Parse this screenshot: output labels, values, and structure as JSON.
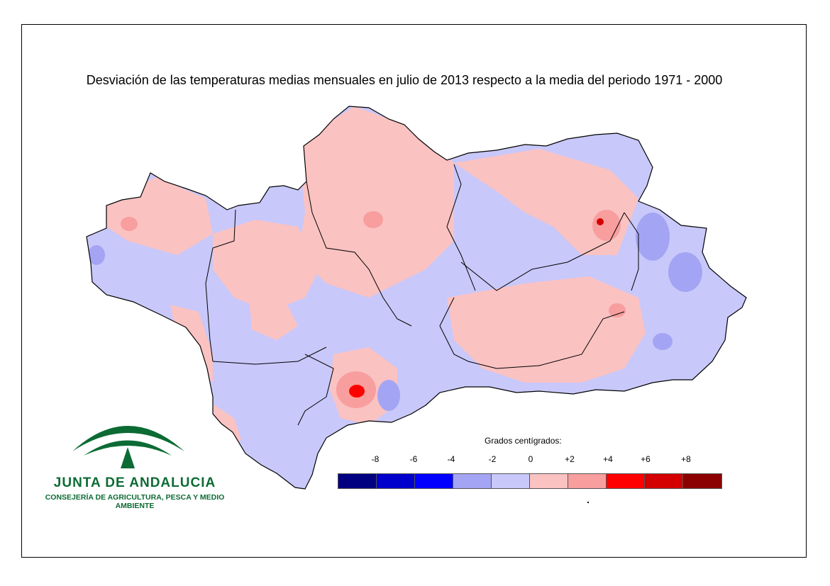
{
  "title": "Desviación de las temperaturas medias mensuales en julio de 2013 respecto a la media del periodo 1971 - 2000",
  "logo": {
    "name": "JUNTA DE ANDALUCIA",
    "subtitle": "CONSEJERÍA DE AGRICULTURA, PESCA Y MEDIO AMBIENTE",
    "color": "#0c6b34"
  },
  "legend": {
    "title": "Grados centígrados:",
    "ticks": [
      "-8",
      "-6",
      "-4",
      "-2",
      "0",
      "+2",
      "+4",
      "+6",
      "+8"
    ],
    "colors": [
      "#000080",
      "#0000cc",
      "#0000ff",
      "#a4a4f4",
      "#c8c8fa",
      "#fbc2c2",
      "#f89e9e",
      "#ff0000",
      "#d40000",
      "#8b0000"
    ]
  },
  "map_colors": {
    "cold_light": "#c8c8fa",
    "cold_mid": "#a4a4f4",
    "warm_light": "#fbc2c2",
    "warm_mid": "#f89e9e",
    "hot": "#ff0000",
    "hotter": "#d40000"
  }
}
